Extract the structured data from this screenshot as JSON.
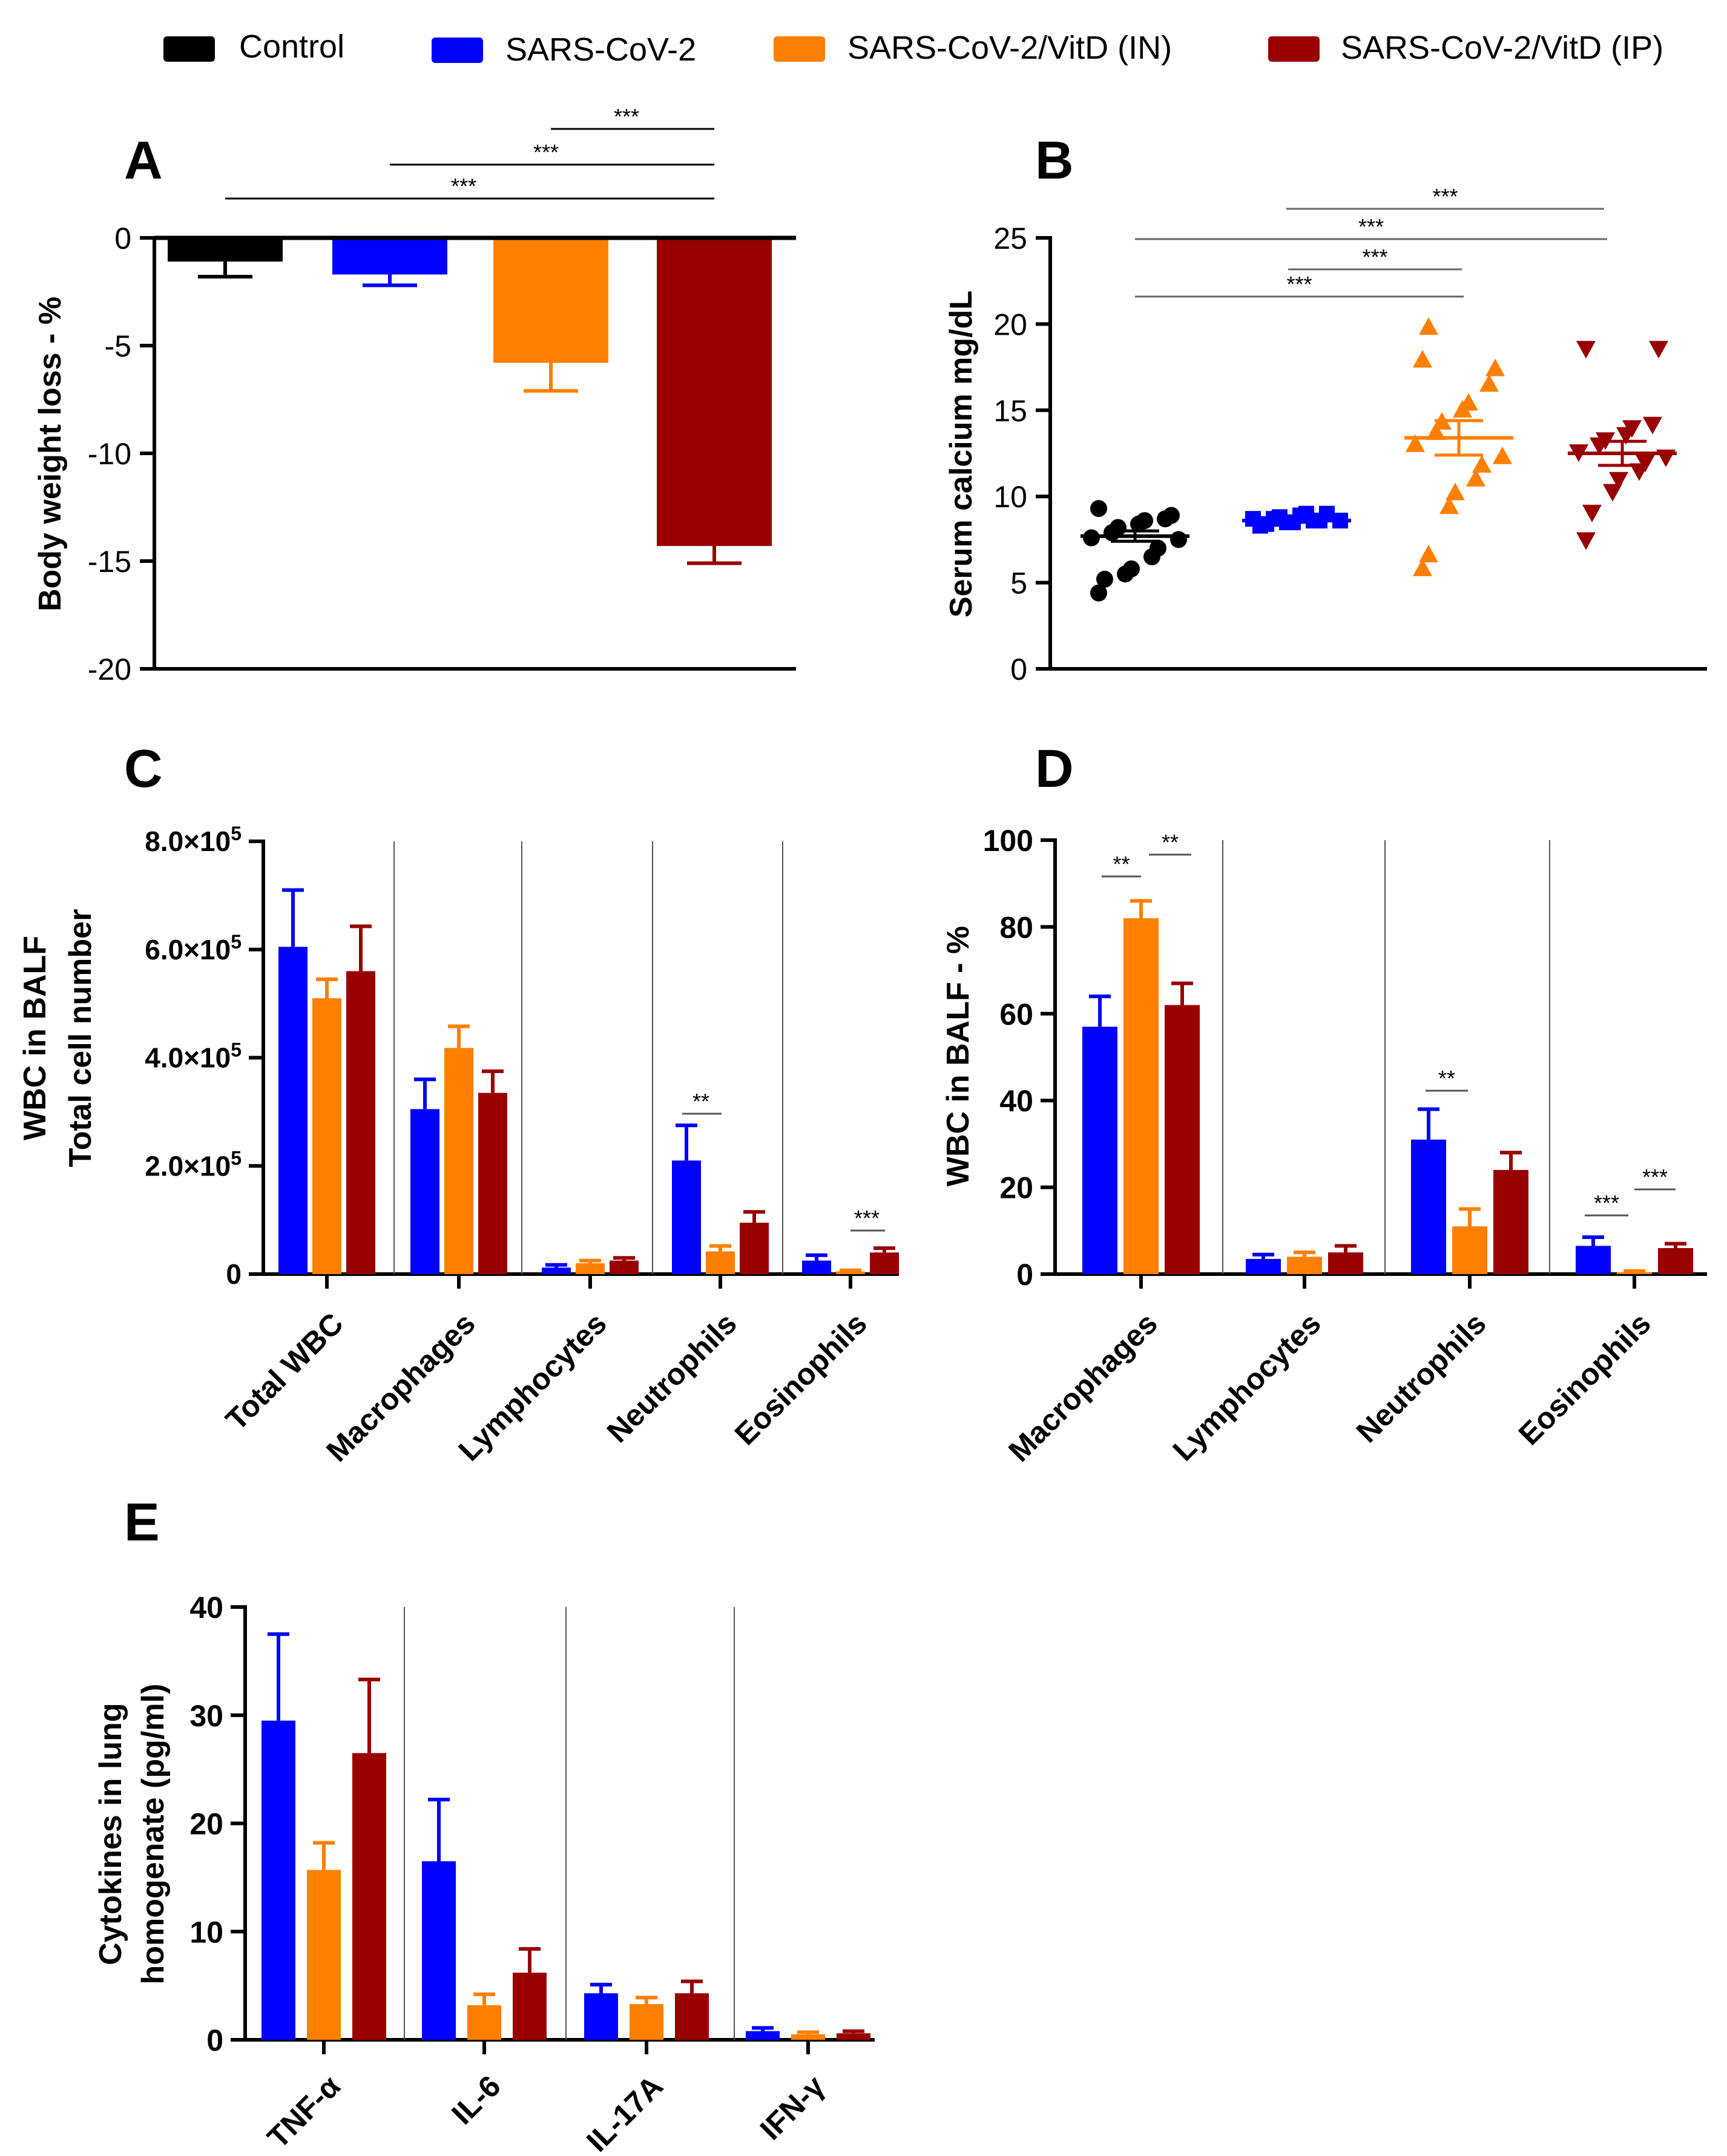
{
  "legend": [
    {
      "label": "Control",
      "color": "#000000"
    },
    {
      "label": "SARS-CoV-2",
      "color": "#0000ff"
    },
    {
      "label": "SARS-CoV-2/VitD (IN)",
      "color": "#ff7f00"
    },
    {
      "label": "SARS-CoV-2/VitD (IP)",
      "color": "#990000"
    }
  ],
  "chart_data": [
    {
      "panel": "A",
      "type": "bar",
      "ylabel": "Body weight loss - %",
      "ylim": [
        -20,
        0
      ],
      "yticks": [
        "0",
        "-5",
        "-10",
        "-15",
        "-20"
      ],
      "categories": [
        "Control",
        "SARS-CoV-2",
        "SARS-CoV-2/VitD (IN)",
        "SARS-CoV-2/VitD (IP)"
      ],
      "values": [
        -1.1,
        -1.7,
        -5.8,
        -14.3
      ],
      "errors": [
        0.7,
        0.5,
        1.3,
        0.8
      ],
      "significance": [
        {
          "from": 2,
          "to": 3,
          "label": "***"
        },
        {
          "from": 1,
          "to": 3,
          "label": "***"
        },
        {
          "from": 0,
          "to": 3,
          "label": "***"
        }
      ]
    },
    {
      "panel": "B",
      "type": "scatter",
      "ylabel": "Serum calcium mg/dL",
      "ylim": [
        0,
        25
      ],
      "yticks": [
        "0",
        "5",
        "10",
        "15",
        "20",
        "25"
      ],
      "groups": [
        {
          "name": "Control",
          "mean": 7.7,
          "sem": 0.3,
          "points": [
            4.4,
            5.2,
            5.5,
            5.8,
            6.5,
            7.0,
            7.5,
            7.6,
            7.9,
            8.2,
            8.4,
            8.6,
            8.7,
            8.9,
            9.3
          ]
        },
        {
          "name": "SARS-CoV-2",
          "mean": 8.6,
          "sem": 0.1,
          "points": [
            8.3,
            8.4,
            8.5,
            8.5,
            8.6,
            8.6,
            8.6,
            8.7,
            8.7,
            8.8,
            8.9,
            9.0,
            9.0
          ]
        },
        {
          "name": "SARS-CoV-2/VitD (IN)",
          "mean": 13.4,
          "sem": 1.0,
          "points": [
            5.8,
            6.6,
            9.4,
            10.2,
            11.0,
            11.8,
            12.3,
            13.0,
            13.7,
            14.3,
            15.0,
            15.4,
            16.5,
            17.4,
            17.9,
            19.8
          ]
        },
        {
          "name": "SARS-CoV-2/VitD (IP)",
          "mean": 12.5,
          "sem": 0.7,
          "points": [
            7.5,
            9.1,
            10.3,
            11.0,
            11.5,
            12.0,
            12.3,
            12.6,
            13.0,
            13.3,
            13.6,
            14.0,
            14.2,
            18.6,
            18.6
          ]
        }
      ],
      "significance": [
        {
          "from": 1,
          "to": 3,
          "label": "***"
        },
        {
          "from": 0,
          "to": 3,
          "label": "***"
        },
        {
          "from": 1,
          "to": 2,
          "label": "***"
        },
        {
          "from": 0,
          "to": 2,
          "label": "***"
        }
      ]
    },
    {
      "panel": "C",
      "type": "bar",
      "ylabel_lines": [
        "WBC in BALF",
        "Total cell number"
      ],
      "ylim": [
        0,
        800000
      ],
      "yticks": [
        {
          "value": 800000,
          "mant": "8.0",
          "exp": "5"
        },
        {
          "value": 600000,
          "mant": "6.0",
          "exp": "5"
        },
        {
          "value": 400000,
          "mant": "4.0",
          "exp": "5"
        },
        {
          "value": 200000,
          "mant": "2.0",
          "exp": "5"
        },
        {
          "value": 0,
          "mant": "0",
          "exp": ""
        }
      ],
      "categories": [
        "Total WBC",
        "Macrophages",
        "Lymphocytes",
        "Neutrophils",
        "Eosinophils"
      ],
      "series": [
        {
          "name": "SARS-CoV-2",
          "color": "#0000ff",
          "values": [
            605000,
            305000,
            12000,
            210000,
            25000
          ],
          "errors": [
            105000,
            55000,
            5000,
            65000,
            10000
          ]
        },
        {
          "name": "SARS-CoV-2/VitD (IN)",
          "color": "#ff7f00",
          "values": [
            510000,
            418000,
            20000,
            42000,
            5000
          ],
          "errors": [
            35000,
            40000,
            5000,
            10000,
            2000
          ]
        },
        {
          "name": "SARS-CoV-2/VitD (IP)",
          "color": "#990000",
          "values": [
            560000,
            335000,
            25000,
            95000,
            40000
          ],
          "errors": [
            83000,
            40000,
            5000,
            20000,
            8000
          ]
        }
      ],
      "significance": [
        {
          "category": 3,
          "from": 0,
          "to": 1,
          "label": "**"
        },
        {
          "category": 4,
          "from": 1,
          "to": 2,
          "label": "***"
        }
      ]
    },
    {
      "panel": "D",
      "type": "bar",
      "ylabel": "WBC in BALF - %",
      "ylim": [
        0,
        100
      ],
      "yticks": [
        "100",
        "80",
        "60",
        "40",
        "20",
        "0"
      ],
      "categories": [
        "Macrophages",
        "Lymphocytes",
        "Neutrophils",
        "Eosinophils"
      ],
      "series": [
        {
          "name": "SARS-CoV-2",
          "color": "#0000ff",
          "values": [
            57,
            3.5,
            31,
            6.5
          ],
          "errors": [
            7,
            1,
            7,
            2
          ]
        },
        {
          "name": "SARS-CoV-2/VitD (IN)",
          "color": "#ff7f00",
          "values": [
            82,
            4,
            11,
            0.4
          ],
          "errors": [
            4,
            1,
            4,
            0.3
          ]
        },
        {
          "name": "SARS-CoV-2/VitD (IP)",
          "color": "#990000",
          "values": [
            62,
            5,
            24,
            6
          ],
          "errors": [
            5,
            1.5,
            4,
            1
          ]
        }
      ],
      "significance": [
        {
          "category": 0,
          "from": 0,
          "to": 1,
          "label": "**"
        },
        {
          "category": 0,
          "from": 1,
          "to": 2,
          "label": "**"
        },
        {
          "category": 2,
          "from": 0,
          "to": 1,
          "label": "**"
        },
        {
          "category": 3,
          "from": 0,
          "to": 1,
          "label": "***"
        },
        {
          "category": 3,
          "from": 1,
          "to": 2,
          "label": "***"
        }
      ]
    },
    {
      "panel": "E",
      "type": "bar",
      "ylabel_lines": [
        "Cytokines in lung",
        "homogenate (pg/ml)"
      ],
      "ylim": [
        0,
        40
      ],
      "yticks": [
        "40",
        "30",
        "20",
        "10",
        "0"
      ],
      "categories": [
        "TNF-α",
        "IL-6",
        "IL-17A",
        "IFN-γ"
      ],
      "series": [
        {
          "name": "SARS-CoV-2",
          "color": "#0000ff",
          "values": [
            29.5,
            16.5,
            4.3,
            0.8
          ],
          "errors": [
            8,
            5.7,
            0.8,
            0.3
          ]
        },
        {
          "name": "SARS-CoV-2/VitD (IN)",
          "color": "#ff7f00",
          "values": [
            15.7,
            3.2,
            3.3,
            0.5
          ],
          "errors": [
            2.5,
            1,
            0.6,
            0.2
          ]
        },
        {
          "name": "SARS-CoV-2/VitD (IP)",
          "color": "#990000",
          "values": [
            26.5,
            6.2,
            4.3,
            0.6
          ],
          "errors": [
            6.8,
            2.2,
            1.1,
            0.2
          ]
        }
      ],
      "significance": []
    }
  ]
}
